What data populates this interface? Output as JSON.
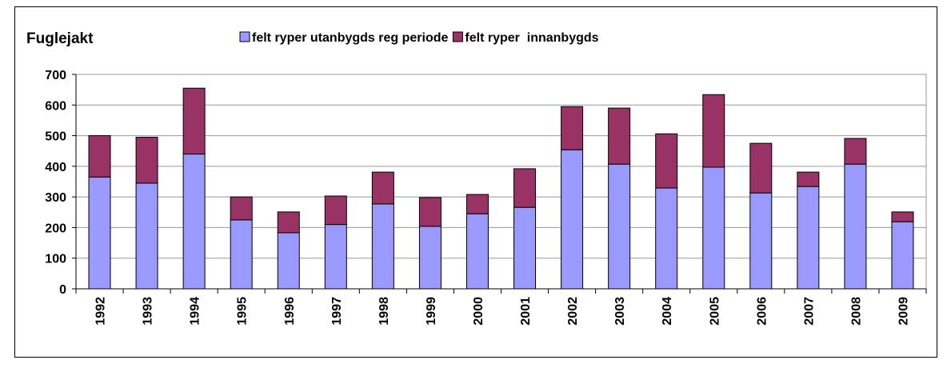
{
  "chart_data": {
    "type": "bar",
    "stacked": true,
    "title": "Fuglejakt",
    "categories": [
      "1992",
      "1993",
      "1994",
      "1995",
      "1996",
      "1997",
      "1998",
      "1999",
      "2000",
      "2001",
      "2002",
      "2003",
      "2004",
      "2005",
      "2006",
      "2007",
      "2008",
      "2009"
    ],
    "series": [
      {
        "name": "felt ryper utanbygds reg periode",
        "color": "#9999ff",
        "values": [
          365,
          345,
          440,
          225,
          183,
          210,
          277,
          204,
          245,
          266,
          454,
          407,
          329,
          397,
          313,
          334,
          407,
          219
        ]
      },
      {
        "name": "felt ryper  innanbygds",
        "color": "#993366",
        "values": [
          135,
          150,
          215,
          75,
          68,
          93,
          104,
          94,
          63,
          126,
          141,
          183,
          177,
          237,
          162,
          47,
          84,
          32
        ]
      }
    ],
    "ylim": [
      0,
      700
    ],
    "yticks": [
      0,
      100,
      200,
      300,
      400,
      500,
      600,
      700
    ],
    "grid": true
  }
}
